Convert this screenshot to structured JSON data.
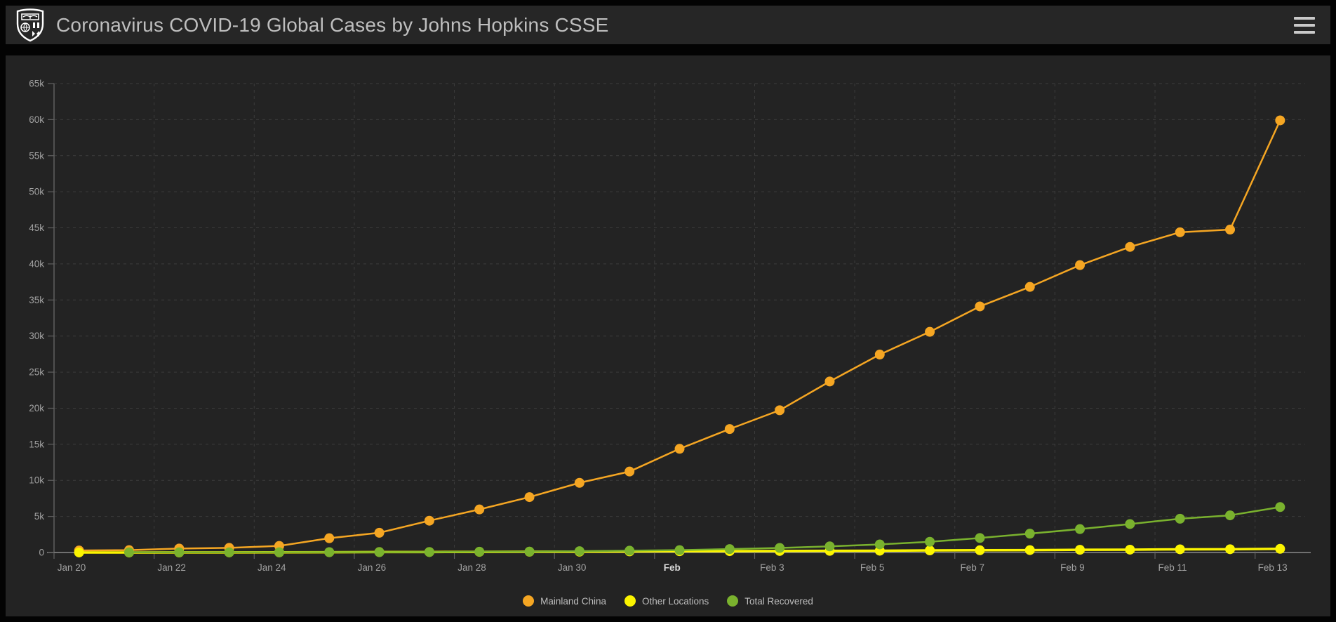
{
  "header": {
    "title": "Coronavirus COVID-19 Global Cases by Johns Hopkins CSSE",
    "logo_icon": "johns-hopkins-shield",
    "menu_icon": "hamburger-menu"
  },
  "colors": {
    "page_background": "#030303",
    "header_background": "#262626",
    "panel_background": "#232323",
    "grid": "#3C3C3C",
    "axis": "#606060",
    "baseline": "#8A8A8A",
    "tick_label": "#A2A2A2",
    "tick_label_bold": "#DADADA",
    "mainland_china": "#F5A623",
    "other_locations": "#FBF400",
    "total_recovered": "#7AB22E"
  },
  "chart_data": {
    "type": "line",
    "title": "",
    "xlabel": "",
    "ylabel": "",
    "ylim": [
      0,
      65000
    ],
    "y_tick_step": 5000,
    "y_tick_labels": [
      "0",
      "5k",
      "10k",
      "15k",
      "20k",
      "25k",
      "30k",
      "35k",
      "40k",
      "45k",
      "50k",
      "55k",
      "60k",
      "65k"
    ],
    "grid": "dashed",
    "legend_position": "bottom",
    "x": [
      "Jan 20",
      "Jan 21",
      "Jan 22",
      "Jan 23",
      "Jan 24",
      "Jan 25",
      "Jan 26",
      "Jan 27",
      "Jan 28",
      "Jan 29",
      "Jan 30",
      "Jan 31",
      "Feb 1",
      "Feb 2",
      "Feb 3",
      "Feb 4",
      "Feb 5",
      "Feb 6",
      "Feb 7",
      "Feb 8",
      "Feb 9",
      "Feb 10",
      "Feb 11",
      "Feb 12",
      "Feb 13"
    ],
    "x_ticks": [
      {
        "i": 0,
        "label": "Jan 20",
        "bold": false
      },
      {
        "i": 2,
        "label": "Jan 22",
        "bold": false
      },
      {
        "i": 4,
        "label": "Jan 24",
        "bold": false
      },
      {
        "i": 6,
        "label": "Jan 26",
        "bold": false
      },
      {
        "i": 8,
        "label": "Jan 28",
        "bold": false
      },
      {
        "i": 10,
        "label": "Jan 30",
        "bold": false
      },
      {
        "i": 12,
        "label": "Feb",
        "bold": true
      },
      {
        "i": 14,
        "label": "Feb 3",
        "bold": false
      },
      {
        "i": 16,
        "label": "Feb 5",
        "bold": false
      },
      {
        "i": 18,
        "label": "Feb 7",
        "bold": false
      },
      {
        "i": 20,
        "label": "Feb 9",
        "bold": false
      },
      {
        "i": 22,
        "label": "Feb 11",
        "bold": false
      },
      {
        "i": 24,
        "label": "Feb 13",
        "bold": false
      }
    ],
    "series": [
      {
        "name": "Mainland China",
        "color": "#F5A623",
        "line_width": 2.5,
        "values": [
          278,
          326,
          547,
          639,
          916,
          1979,
          2737,
          4409,
          5970,
          7678,
          9658,
          11221,
          14375,
          17114,
          19716,
          23707,
          27440,
          30587,
          34110,
          36814,
          39829,
          42354,
          44386,
          44759,
          59895
        ]
      },
      {
        "name": "Other Locations",
        "color": "#FBF400",
        "line_width": 3.5,
        "values": [
          4,
          6,
          8,
          14,
          25,
          40,
          57,
          64,
          87,
          105,
          118,
          153,
          183,
          188,
          211,
          226,
          247,
          293,
          313,
          333,
          376,
          395,
          441,
          456,
          505
        ]
      },
      {
        "name": "Total Recovered",
        "color": "#7AB22E",
        "line_width": 2.5,
        "values": [
          null,
          30,
          28,
          30,
          36,
          49,
          54,
          63,
          108,
          127,
          187,
          252,
          328,
          475,
          632,
          852,
          1124,
          1487,
          2011,
          2616,
          3244,
          3946,
          4683,
          5150,
          6295
        ]
      }
    ]
  }
}
